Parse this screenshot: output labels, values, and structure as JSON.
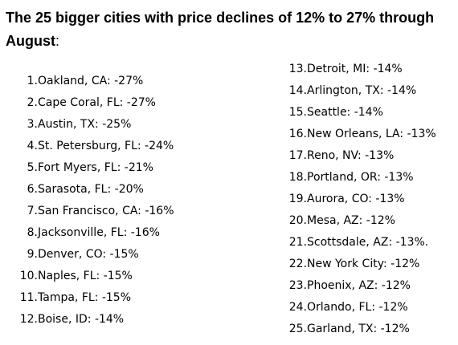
{
  "heading": {
    "text": "The 25 bigger cities with price declines of 12% to 27% through August",
    "suffix": ":"
  },
  "left_list": [
    {
      "num": "1.",
      "text": "Oakland, CA: -27%"
    },
    {
      "num": "2.",
      "text": "Cape Coral, FL: -27%"
    },
    {
      "num": "3.",
      "text": "Austin, TX: -25%"
    },
    {
      "num": "4.",
      "text": "St. Petersburg, FL: -24%"
    },
    {
      "num": "5.",
      "text": "Fort Myers, FL: -21%"
    },
    {
      "num": "6.",
      "text": "Sarasota, FL: -20%"
    },
    {
      "num": "7.",
      "text": "San Francisco, CA: -16%"
    },
    {
      "num": "8.",
      "text": "Jacksonville, FL: -16%"
    },
    {
      "num": "9.",
      "text": "Denver, CO: -15%"
    },
    {
      "num": "10.",
      "text": "Naples, FL: -15%"
    },
    {
      "num": "11.",
      "text": "Tampa, FL: -15%"
    },
    {
      "num": "12.",
      "text": "Boise, ID: -14%"
    }
  ],
  "right_list": [
    {
      "num": "13.",
      "text": "Detroit, MI: -14%"
    },
    {
      "num": "14.",
      "text": "Arlington, TX: -14%"
    },
    {
      "num": "15.",
      "text": "Seattle: -14%"
    },
    {
      "num": "16.",
      "text": "New Orleans, LA: -13%"
    },
    {
      "num": "17.",
      "text": "Reno, NV: -13%"
    },
    {
      "num": "18.",
      "text": "Portland, OR: -13%"
    },
    {
      "num": "19.",
      "text": "Aurora, CO: -13%"
    },
    {
      "num": "20.",
      "text": "Mesa, AZ: -12%"
    },
    {
      "num": "21.",
      "text": "Scottsdale, AZ: -13%."
    },
    {
      "num": "22.",
      "text": "New York City: -12%"
    },
    {
      "num": "23.",
      "text": "Phoenix, AZ: -12%"
    },
    {
      "num": "24.",
      "text": "Orlando, FL: -12%"
    },
    {
      "num": "25.",
      "text": "Garland, TX: -12%"
    }
  ]
}
